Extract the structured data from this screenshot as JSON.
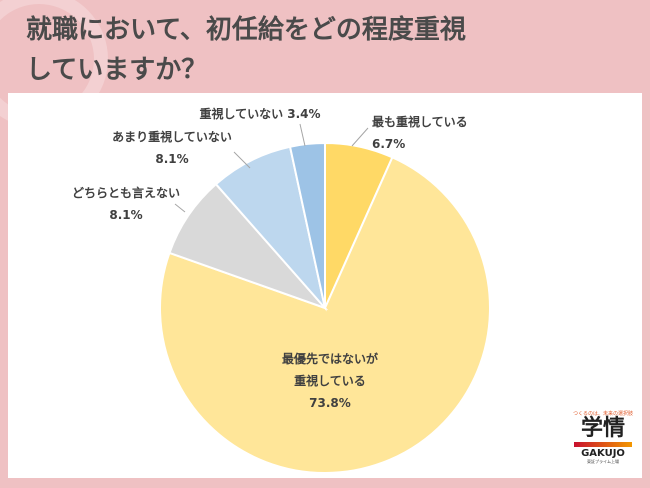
{
  "title_lines": [
    "就職において、初任給をどの程度重視",
    "していますか？"
  ],
  "chart_data": {
    "type": "pie",
    "title": "就職において、初任給をどの程度重視していますか？",
    "start": "top",
    "direction": "clockwise",
    "slices": [
      {
        "label": "最も重視している",
        "value": 6.7,
        "display": "6.7%",
        "color": "#FFD966"
      },
      {
        "label": "最優先ではないが重視している",
        "value": 73.8,
        "display": "73.8%",
        "color": "#FFE699"
      },
      {
        "label": "どちらとも言えない",
        "value": 8.1,
        "display": "8.1%",
        "color": "#D9D9D9"
      },
      {
        "label": "あまり重視していない",
        "value": 8.1,
        "display": "8.1%",
        "color": "#BDD7EE"
      },
      {
        "label": "重視していない",
        "value": 3.4,
        "display": "3.4%",
        "color": "#9DC3E6"
      }
    ]
  },
  "logo": {
    "tagline": "つくるのは、未来の選択肢",
    "name": "学情",
    "roman": "GAKUJO",
    "sub": "東証プライム上場"
  }
}
